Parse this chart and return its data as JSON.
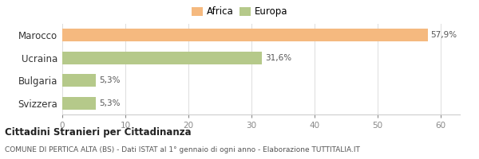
{
  "categories": [
    "Marocco",
    "Ucraina",
    "Bulgaria",
    "Svizzera"
  ],
  "values": [
    57.9,
    31.6,
    5.3,
    5.3
  ],
  "labels": [
    "57,9%",
    "31,6%",
    "5,3%",
    "5,3%"
  ],
  "colors": [
    "#f5b97f",
    "#b5c98a",
    "#b5c98a",
    "#b5c98a"
  ],
  "legend": [
    {
      "label": "Africa",
      "color": "#f5b97f"
    },
    {
      "label": "Europa",
      "color": "#b5c98a"
    }
  ],
  "xlim": [
    0,
    63
  ],
  "xticks": [
    0,
    10,
    20,
    30,
    40,
    50,
    60
  ],
  "title": "Cittadini Stranieri per Cittadinanza",
  "subtitle": "COMUNE DI PERTICA ALTA (BS) - Dati ISTAT al 1° gennaio di ogni anno - Elaborazione TUTTITALIA.IT",
  "background_color": "#ffffff",
  "bar_height": 0.55
}
